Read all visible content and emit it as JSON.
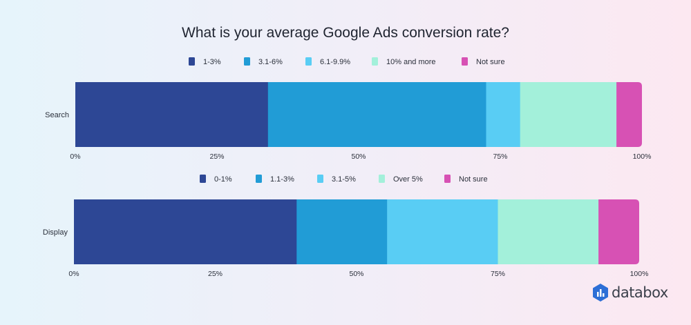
{
  "chart_data": {
    "title": "What is your average Google Ads conversion rate?",
    "charts": [
      {
        "type": "bar",
        "orientation": "horizontal-stacked-100",
        "category": "Search",
        "legend": [
          "1-3%",
          "3.1-6%",
          "6.1-9.9%",
          "10% and more",
          "Not sure"
        ],
        "values": [
          34,
          38.5,
          6,
          17,
          4.5
        ],
        "xticks": [
          "0%",
          "25%",
          "50%",
          "75%",
          "100%"
        ],
        "xlim": [
          0,
          100
        ]
      },
      {
        "type": "bar",
        "orientation": "horizontal-stacked-100",
        "category": "Display",
        "legend": [
          "0-1%",
          "1.1-3%",
          "3.1-5%",
          "Over 5%",
          "Not sure"
        ],
        "values": [
          39.4,
          16,
          19.6,
          17.8,
          7.2
        ],
        "xticks": [
          "0%",
          "25%",
          "50%",
          "75%",
          "100%"
        ],
        "xlim": [
          0,
          100
        ]
      }
    ],
    "colors": [
      "#2d4795",
      "#219cd6",
      "#59cdf4",
      "#a3f0da",
      "#d751b4"
    ],
    "legend_position": "top",
    "grid": false
  },
  "brand": {
    "name": "databox",
    "icon": "databox-logo-icon"
  }
}
